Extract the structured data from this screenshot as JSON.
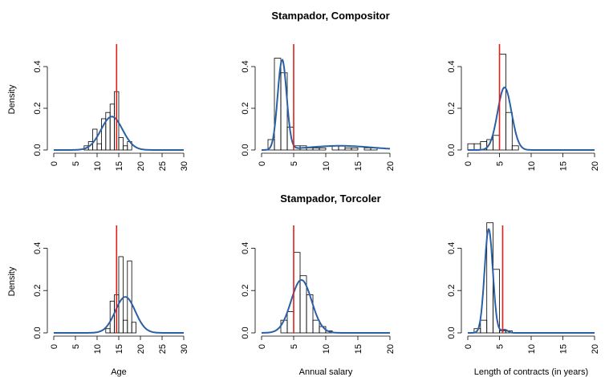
{
  "row_titles": [
    "Stampador, Compositor",
    "Stampador, Torcoler"
  ],
  "ylabel": "Density",
  "xlabels": [
    "Age",
    "Annual salary",
    "Length of contracts (in years)"
  ],
  "colors": {
    "hist": "#000000",
    "density": "#2b5fa6",
    "marker": "#e0201b"
  },
  "chart_data": [
    {
      "type": "histogram",
      "row_title": "Stampador, Compositor",
      "xlabel": "",
      "ylabel": "Density",
      "xlim": [
        0,
        30
      ],
      "ylim": [
        0,
        0.5
      ],
      "xticks": [
        0,
        5,
        10,
        15,
        20,
        25,
        30
      ],
      "yticks": [
        0.0,
        0.2,
        0.4
      ],
      "bin_width": 1,
      "bins": [
        [
          7,
          0.02
        ],
        [
          8,
          0.04
        ],
        [
          9,
          0.1
        ],
        [
          10,
          0.03
        ],
        [
          11,
          0.15
        ],
        [
          12,
          0.18
        ],
        [
          13,
          0.22
        ],
        [
          14,
          0.28
        ],
        [
          15,
          0.06
        ],
        [
          16,
          0.02
        ],
        [
          17,
          0.04
        ]
      ],
      "density": {
        "mean": 13.4,
        "sd": 2.5,
        "peak": 0.16
      },
      "vline": 14.5
    },
    {
      "type": "histogram",
      "row_title": "Stampador, Compositor",
      "xlabel": "",
      "ylabel": "",
      "xlim": [
        0,
        20
      ],
      "ylim": [
        0,
        0.5
      ],
      "xticks": [
        0,
        5,
        10,
        15,
        20
      ],
      "yticks": [
        0.0,
        0.2,
        0.4
      ],
      "bin_width": 1,
      "bins": [
        [
          1,
          0.05
        ],
        [
          2,
          0.44
        ],
        [
          3,
          0.37
        ],
        [
          4,
          0.11
        ],
        [
          5,
          0.02
        ],
        [
          6,
          0.02
        ],
        [
          7,
          0.01
        ],
        [
          8,
          0.01
        ],
        [
          9,
          0.01
        ],
        [
          11,
          0.02
        ],
        [
          12,
          0.02
        ],
        [
          13,
          0.01
        ],
        [
          14,
          0.01
        ],
        [
          16,
          0.01
        ],
        [
          17,
          0.01
        ]
      ],
      "density": {
        "mean": 3.2,
        "sd": 0.7,
        "peak": 0.43,
        "tail": 0.02
      },
      "vline": 5
    },
    {
      "type": "histogram",
      "row_title": "Stampador, Compositor",
      "xlabel": "",
      "ylabel": "",
      "xlim": [
        0,
        20
      ],
      "ylim": [
        0,
        0.5
      ],
      "xticks": [
        0,
        5,
        10,
        15,
        20
      ],
      "yticks": [
        0.0,
        0.2,
        0.4
      ],
      "bin_width": 1,
      "bins": [
        [
          0,
          0.03
        ],
        [
          1,
          0.03
        ],
        [
          2,
          0.04
        ],
        [
          3,
          0.05
        ],
        [
          4,
          0.07
        ],
        [
          5,
          0.46
        ],
        [
          6,
          0.18
        ],
        [
          7,
          0.02
        ]
      ],
      "density": {
        "mean": 5.8,
        "sd": 1.1,
        "peak": 0.3
      },
      "vline": 5
    },
    {
      "type": "histogram",
      "row_title": "Stampador, Torcoler",
      "xlabel": "Age",
      "ylabel": "Density",
      "xlim": [
        0,
        30
      ],
      "ylim": [
        0,
        0.5
      ],
      "xticks": [
        0,
        5,
        10,
        15,
        20,
        25,
        30
      ],
      "yticks": [
        0.0,
        0.2,
        0.4
      ],
      "bin_width": 1,
      "bins": [
        [
          12,
          0.02
        ],
        [
          13,
          0.15
        ],
        [
          14,
          0.18
        ],
        [
          15,
          0.36
        ],
        [
          16,
          0.06
        ],
        [
          17,
          0.34
        ],
        [
          18,
          0.05
        ]
      ],
      "density": {
        "mean": 16.5,
        "sd": 2.3,
        "peak": 0.17
      },
      "vline": 14.5
    },
    {
      "type": "histogram",
      "row_title": "Stampador, Torcoler",
      "xlabel": "Annual salary",
      "ylabel": "",
      "xlim": [
        0,
        20
      ],
      "ylim": [
        0,
        0.5
      ],
      "xticks": [
        0,
        5,
        10,
        15,
        20
      ],
      "yticks": [
        0.0,
        0.2,
        0.4
      ],
      "bin_width": 1,
      "bins": [
        [
          3,
          0.06
        ],
        [
          4,
          0.1
        ],
        [
          5,
          0.38
        ],
        [
          6,
          0.27
        ],
        [
          7,
          0.18
        ],
        [
          8,
          0.06
        ],
        [
          9,
          0.03
        ],
        [
          10,
          0.01
        ]
      ],
      "density": {
        "mean": 6.2,
        "sd": 1.6,
        "peak": 0.25
      },
      "vline": 5
    },
    {
      "type": "histogram",
      "row_title": "Stampador, Torcoler",
      "xlabel": "Length of contracts (in years)",
      "ylabel": "",
      "xlim": [
        0,
        20
      ],
      "ylim": [
        0,
        0.5
      ],
      "xticks": [
        0,
        5,
        10,
        15,
        20
      ],
      "yticks": [
        0.0,
        0.2,
        0.4
      ],
      "bin_width": 1,
      "bins": [
        [
          1,
          0.02
        ],
        [
          2,
          0.06
        ],
        [
          3,
          0.52
        ],
        [
          4,
          0.3
        ],
        [
          5,
          0.01
        ],
        [
          6,
          0.01
        ]
      ],
      "density": {
        "mean": 3.3,
        "sd": 0.65,
        "peak": 0.49,
        "bump_mean": 5.8,
        "bump_peak": 0.015
      },
      "vline": 5.5
    }
  ]
}
